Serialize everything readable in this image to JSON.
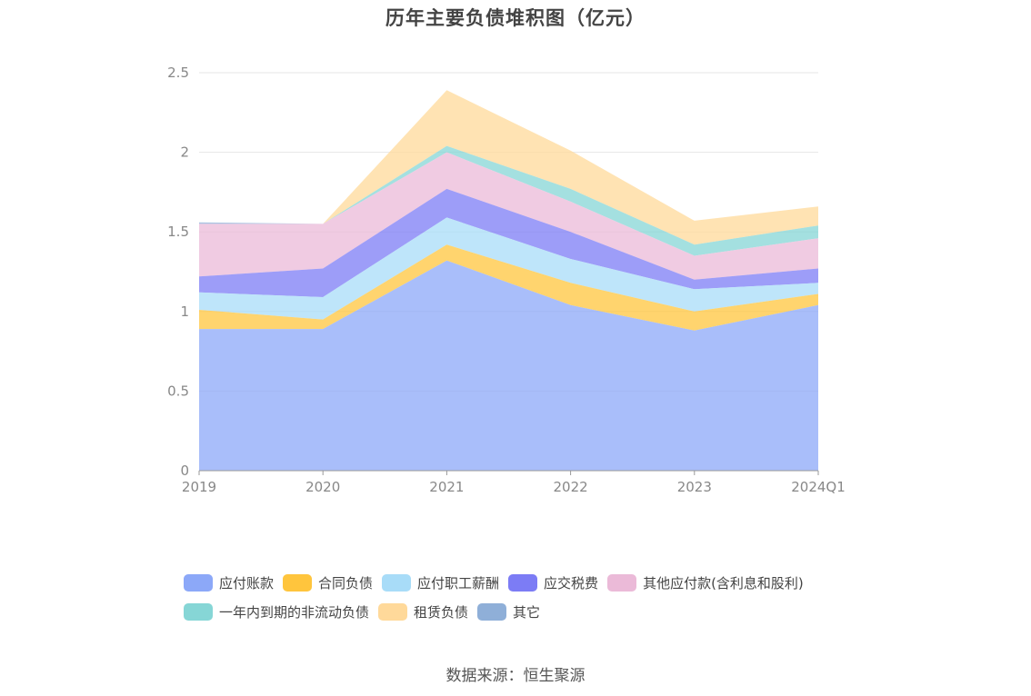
{
  "title": "历年主要负债堆积图（亿元）",
  "source": "数据来源：恒生聚源",
  "chart_data": {
    "type": "area",
    "stacked": true,
    "title": "历年主要负债堆积图（亿元）",
    "x": [
      "2019",
      "2020",
      "2021",
      "2022",
      "2023",
      "2024Q1"
    ],
    "ylim": [
      0,
      2.5
    ],
    "yticks": [
      "0",
      "0.5",
      "1",
      "1.5",
      "2",
      "2.5"
    ],
    "grid": true,
    "legend_position": "bottom",
    "series": [
      {
        "name": "应付账款",
        "color": "#8ca8f8",
        "values": [
          0.89,
          0.89,
          1.32,
          1.04,
          0.88,
          1.04
        ]
      },
      {
        "name": "合同负债",
        "color": "#ffc53d",
        "values": [
          0.12,
          0.06,
          0.1,
          0.14,
          0.12,
          0.07
        ]
      },
      {
        "name": "应付职工薪酬",
        "color": "#a8dcf8",
        "values": [
          0.11,
          0.14,
          0.17,
          0.15,
          0.14,
          0.07
        ]
      },
      {
        "name": "应交税费",
        "color": "#7c7cf5",
        "values": [
          0.1,
          0.18,
          0.18,
          0.17,
          0.06,
          0.09
        ]
      },
      {
        "name": "其他应付款(含利息和股利)",
        "color": "#ebbad8",
        "values": [
          0.33,
          0.28,
          0.23,
          0.19,
          0.15,
          0.19
        ]
      },
      {
        "name": "一年内到期的非流动负债",
        "color": "#86d6d6",
        "values": [
          0.0,
          0.0,
          0.04,
          0.08,
          0.07,
          0.08
        ]
      },
      {
        "name": "租赁负债",
        "color": "#ffd99a",
        "values": [
          0.0,
          0.0,
          0.35,
          0.24,
          0.15,
          0.12
        ]
      },
      {
        "name": "其它",
        "color": "#8fafd8",
        "values": [
          0.01,
          0.0,
          0.0,
          0.0,
          0.0,
          0.0
        ]
      }
    ]
  }
}
